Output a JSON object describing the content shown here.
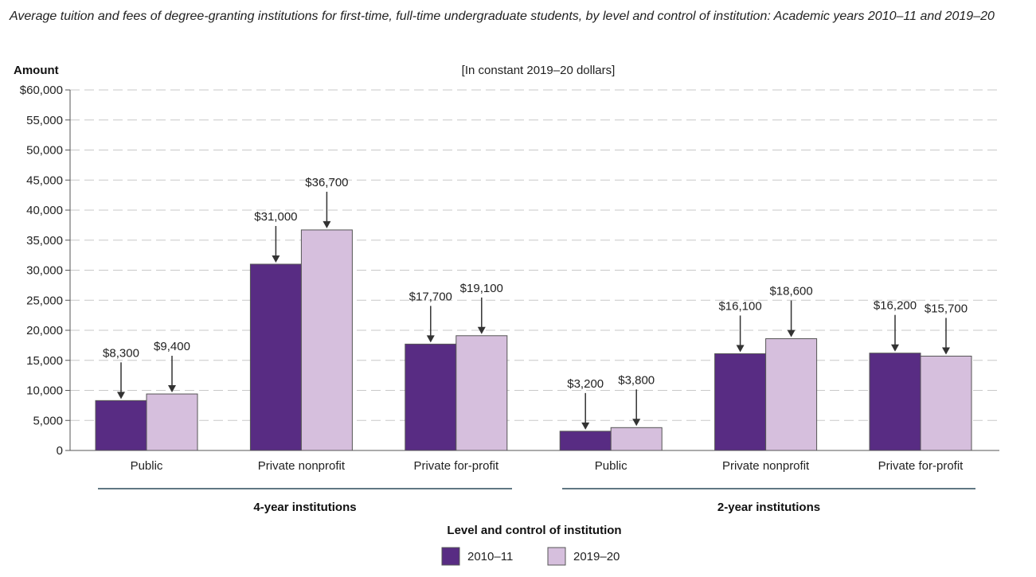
{
  "title": "Average tuition and fees of degree-granting institutions for first-time, full-time undergraduate students, by level and control of institution: Academic years 2010–11 and 2019–20",
  "subtitle": "[In constant 2019–20 dollars]",
  "ylabel": "Amount",
  "xlabel": "Level and control of institution",
  "colors": {
    "2010–11": "#582c83",
    "2019–20": "#d6bfdd",
    "grid": "#c8c8c8",
    "axis": "#555555",
    "bar_stroke": "#555555"
  },
  "chart_data": {
    "type": "bar",
    "title": "Average tuition and fees of degree-granting institutions for first-time, full-time undergraduate students, by level and control of institution: Academic years 2010–11 and 2019–20",
    "subtitle": "[In constant 2019–20 dollars]",
    "ylabel": "Amount",
    "xlabel": "Level and control of institution",
    "ylim": [
      0,
      60000
    ],
    "yticks": [
      0,
      5000,
      10000,
      15000,
      20000,
      25000,
      30000,
      35000,
      40000,
      45000,
      50000,
      55000,
      60000
    ],
    "ytick_labels": [
      "0",
      "5,000",
      "10,000",
      "15,000",
      "20,000",
      "25,000",
      "30,000",
      "35,000",
      "40,000",
      "45,000",
      "50,000",
      "55,000",
      "$60,000"
    ],
    "grid": true,
    "legend_position": "bottom-center",
    "groups": [
      {
        "label": "4-year institutions",
        "categories": [
          "Public",
          "Private nonprofit",
          "Private for-profit"
        ]
      },
      {
        "label": "2-year institutions",
        "categories": [
          "Public",
          "Private nonprofit",
          "Private for-profit"
        ]
      }
    ],
    "categories": [
      "Public",
      "Private nonprofit",
      "Private for-profit",
      "Public",
      "Private nonprofit",
      "Private for-profit"
    ],
    "series": [
      {
        "name": "2010–11",
        "values": [
          8300,
          31000,
          17700,
          3200,
          16100,
          16200
        ],
        "labels": [
          "$8,300",
          "$31,000",
          "$17,700",
          "$3,200",
          "$16,100",
          "$16,200"
        ]
      },
      {
        "name": "2019–20",
        "values": [
          9400,
          36700,
          19100,
          3800,
          18600,
          15700
        ],
        "labels": [
          "$9,400",
          "$36,700",
          "$19,100",
          "$3,800",
          "$18,600",
          "$15,700"
        ]
      }
    ]
  }
}
